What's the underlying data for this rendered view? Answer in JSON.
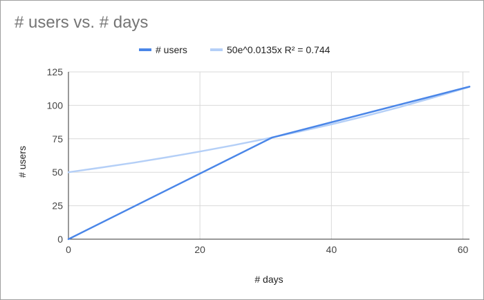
{
  "chart_data": {
    "type": "line",
    "title": "# users vs. # days",
    "xlabel": "# days",
    "ylabel": "# users",
    "xlim": [
      0,
      61
    ],
    "ylim": [
      0,
      125
    ],
    "x_ticks": [
      0,
      20,
      40,
      60
    ],
    "y_ticks": [
      0,
      25,
      50,
      75,
      100,
      125
    ],
    "grid": true,
    "legend_position": "top",
    "series": [
      {
        "name": "# users",
        "color": "#4a86e8",
        "x": [
          0,
          31,
          61
        ],
        "y": [
          0,
          76,
          114
        ]
      },
      {
        "name": "50e^0.0135x R² = 0.744",
        "color": "#b4cff7",
        "kind": "trendline",
        "x": [
          0,
          5,
          10,
          15,
          20,
          25,
          30,
          35,
          40,
          45,
          50,
          55,
          61
        ],
        "y": [
          50,
          53.5,
          57.2,
          61.2,
          65.5,
          70.1,
          75.0,
          80.2,
          85.8,
          91.8,
          98.2,
          105.1,
          113.8
        ]
      }
    ]
  }
}
